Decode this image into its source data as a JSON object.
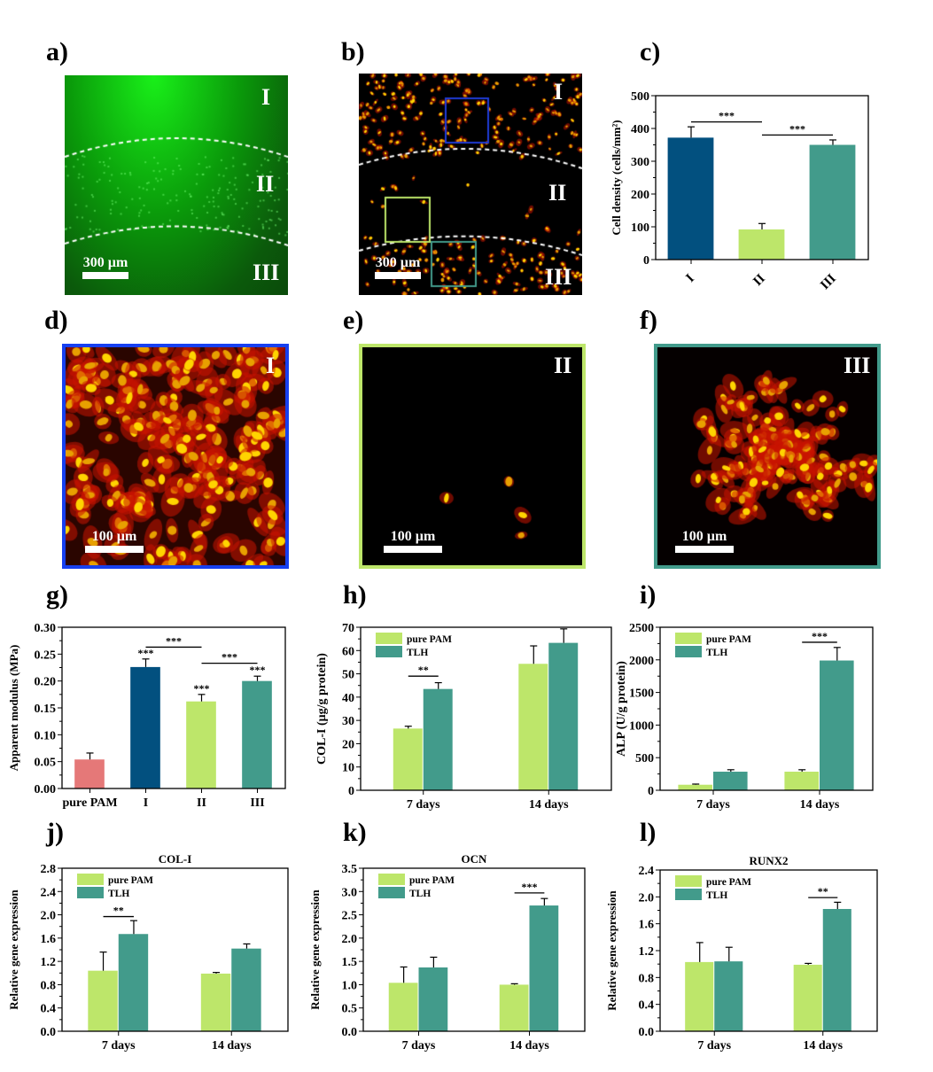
{
  "panel_labels": {
    "a": "a)",
    "b": "b)",
    "c": "c)",
    "d": "d)",
    "e": "e)",
    "f": "f)",
    "g": "g)",
    "h": "h)",
    "i": "i)",
    "j": "j)",
    "k": "k)",
    "l": "l)"
  },
  "images": {
    "a": {
      "regions": [
        "I",
        "II",
        "III"
      ],
      "scale_bar": "300 µm"
    },
    "b": {
      "regions": [
        "I",
        "II",
        "III"
      ],
      "scale_bar": "300 µm",
      "box_colors": [
        "#1f3bd6",
        "#bde66a",
        "#429b8b"
      ]
    },
    "d": {
      "region": "I",
      "scale_bar": "100 µm",
      "border_color": "#1740f0"
    },
    "e": {
      "region": "II",
      "scale_bar": "100 µm",
      "border_color": "#bde66a"
    },
    "f": {
      "region": "III",
      "scale_bar": "100 µm",
      "border_color": "#429b8b"
    }
  },
  "chart_data": [
    {
      "panel": "c",
      "type": "bar",
      "title": "",
      "xlabel": "",
      "ylabel": "Cell density (cells/mm²)",
      "ylim": [
        0,
        500
      ],
      "yticks": [
        "0",
        "100",
        "200",
        "300",
        "400",
        "500"
      ],
      "categories": [
        "I",
        "II",
        "III"
      ],
      "x_rotated": true,
      "series": [
        {
          "values": [
            372,
            92,
            350
          ],
          "errors": [
            33,
            18,
            15
          ],
          "colors": [
            "#02507f",
            "#bde66a",
            "#429b8b"
          ]
        }
      ],
      "significance": [
        {
          "label": "***",
          "from": "I",
          "to": "II",
          "y": 420
        },
        {
          "label": "***",
          "from": "II",
          "to": "III",
          "y": 380
        }
      ],
      "bar_labels": []
    },
    {
      "panel": "g",
      "type": "bar",
      "title": "",
      "xlabel": "",
      "ylabel": "Apparent modulus (MPa)",
      "ylim": [
        0,
        0.3
      ],
      "yticks": [
        "0.00",
        "0.05",
        "0.10",
        "0.15",
        "0.20",
        "0.25",
        "0.30"
      ],
      "categories": [
        "pure PAM",
        "I",
        "II",
        "III"
      ],
      "series": [
        {
          "values": [
            0.054,
            0.226,
            0.162,
            0.2
          ],
          "errors": [
            0.012,
            0.015,
            0.013,
            0.009
          ],
          "colors": [
            "#e57878",
            "#02507f",
            "#bde66a",
            "#429b8b"
          ]
        }
      ],
      "significance": [
        {
          "label": "***",
          "from": "I",
          "to": "II",
          "y": 0.263
        },
        {
          "label": "***",
          "from": "II",
          "to": "III",
          "y": 0.233
        }
      ],
      "bar_labels": [
        {
          "bar": "I",
          "label": "***"
        },
        {
          "bar": "II",
          "label": "***"
        },
        {
          "bar": "III",
          "label": "***"
        }
      ]
    },
    {
      "panel": "h",
      "type": "bar",
      "title": "",
      "xlabel": "",
      "ylabel": "COL-I (μg/g protein)",
      "ylim": [
        0,
        70
      ],
      "yticks": [
        "0",
        "10",
        "20",
        "30",
        "40",
        "50",
        "60",
        "70"
      ],
      "categories": [
        "7 days",
        "14 days"
      ],
      "series": [
        {
          "name": "pure PAM",
          "color": "#bde66a",
          "values": [
            26.5,
            54.3
          ],
          "errors": [
            1,
            7.7
          ]
        },
        {
          "name": "TLH",
          "color": "#429b8b",
          "values": [
            43.5,
            63.3
          ],
          "errors": [
            2.7,
            6
          ]
        }
      ],
      "significance": [
        {
          "label": "**",
          "category": "7 days",
          "y": 49
        }
      ],
      "legend": "top-left",
      "bar_labels": []
    },
    {
      "panel": "i",
      "type": "bar",
      "title": "",
      "xlabel": "",
      "ylabel": "ALP (U/g protein)",
      "ylim": [
        0,
        2500
      ],
      "yticks": [
        "0",
        "500",
        "1000",
        "1500",
        "2000",
        "2500"
      ],
      "categories": [
        "7 days",
        "14 days"
      ],
      "series": [
        {
          "name": "pure PAM",
          "color": "#bde66a",
          "values": [
            85,
            285
          ],
          "errors": [
            10,
            30
          ]
        },
        {
          "name": "TLH",
          "color": "#429b8b",
          "values": [
            285,
            1990
          ],
          "errors": [
            30,
            200
          ]
        }
      ],
      "significance": [
        {
          "label": "***",
          "category": "14 days",
          "y": 2270
        }
      ],
      "legend": "top-left",
      "bar_labels": []
    },
    {
      "panel": "j",
      "type": "bar",
      "title": "COL-I",
      "xlabel": "",
      "ylabel": "Relative gene expression",
      "ylim": [
        0,
        2.8
      ],
      "yticks": [
        "0.0",
        "0.4",
        "0.8",
        "1.2",
        "1.6",
        "2.0",
        "2.4",
        "2.8"
      ],
      "categories": [
        "7 days",
        "14 days"
      ],
      "series": [
        {
          "name": "pure PAM",
          "color": "#bde66a",
          "values": [
            1.04,
            0.99
          ],
          "errors": [
            0.32,
            0.02
          ]
        },
        {
          "name": "TLH",
          "color": "#429b8b",
          "values": [
            1.67,
            1.42
          ],
          "errors": [
            0.23,
            0.08
          ]
        }
      ],
      "significance": [
        {
          "label": "**",
          "category": "7 days",
          "y": 1.97
        }
      ],
      "legend": "top-left",
      "bar_labels": []
    },
    {
      "panel": "k",
      "type": "bar",
      "title": "OCN",
      "xlabel": "",
      "ylabel": "Relative gene expression",
      "ylim": [
        0,
        3.5
      ],
      "yticks": [
        "0.0",
        "0.5",
        "1.0",
        "1.5",
        "2.0",
        "2.5",
        "3.0",
        "3.5"
      ],
      "categories": [
        "7 days",
        "14 days"
      ],
      "series": [
        {
          "name": "pure PAM",
          "color": "#bde66a",
          "values": [
            1.04,
            1.0
          ],
          "errors": [
            0.34,
            0.02
          ]
        },
        {
          "name": "TLH",
          "color": "#429b8b",
          "values": [
            1.37,
            2.7
          ],
          "errors": [
            0.22,
            0.15
          ]
        }
      ],
      "significance": [
        {
          "label": "***",
          "category": "14 days",
          "y": 2.97
        }
      ],
      "legend": "top-left",
      "bar_labels": []
    },
    {
      "panel": "l",
      "type": "bar",
      "title": "RUNX2",
      "xlabel": "",
      "ylabel": "Relative gene expression",
      "ylim": [
        0,
        2.4
      ],
      "yticks": [
        "0.0",
        "0.4",
        "0.8",
        "1.2",
        "1.6",
        "2.0",
        "2.4"
      ],
      "categories": [
        "7 days",
        "14 days"
      ],
      "series": [
        {
          "name": "pure PAM",
          "color": "#bde66a",
          "values": [
            1.03,
            0.99
          ],
          "errors": [
            0.29,
            0.02
          ]
        },
        {
          "name": "TLH",
          "color": "#429b8b",
          "values": [
            1.04,
            1.82
          ],
          "errors": [
            0.21,
            0.1
          ]
        }
      ],
      "significance": [
        {
          "label": "**",
          "category": "14 days",
          "y": 1.99
        }
      ],
      "legend": "top-left",
      "bar_labels": []
    }
  ]
}
